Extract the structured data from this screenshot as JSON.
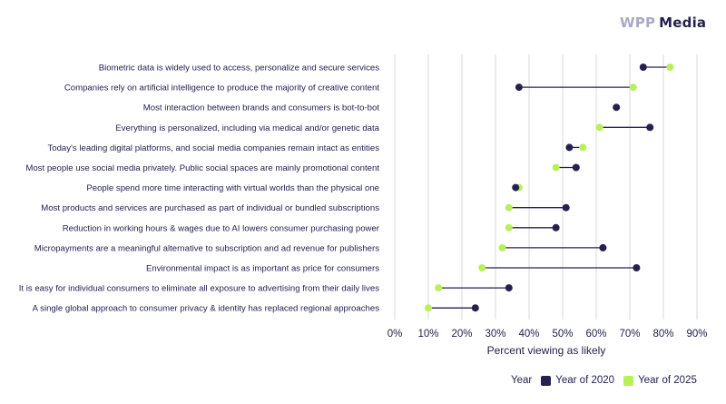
{
  "brand": {
    "wpp": "WPP",
    "media": "Media"
  },
  "colors": {
    "series_2020": "#242150",
    "series_2025": "#b8f05a",
    "grid": "#d9d9de",
    "line": "#242150"
  },
  "chart_data": {
    "type": "dumbbell",
    "categories": [
      "Biometric data is widely used to access, personalize and secure services",
      "Companies rely on artificial intelligence to produce the majority of creative content",
      "Most interaction between brands and consumers is bot-to-bot",
      "Everything is personalized, including via medical and/or genetic data",
      "Today's leading digital platforms, and social media companies remain intact as entities",
      "Most people use social media privately. Public social spaces are mainly promotional content",
      "People spend more time interacting with virtual worlds than the physical one",
      "Most products and services are purchased as part of individual or bundled subscriptions",
      "Reduction in working hours & wages due to AI lowers consumer purchasing power",
      "Micropayments are a meaningful alternative to subscription and ad revenue for publishers",
      "Environmental impact is as important as price for consumers",
      "It is easy for individual consumers to eliminate all exposure to advertising from their daily lives",
      "A single global approach to consumer privacy & identity has replaced regional approaches"
    ],
    "series": [
      {
        "name": "Year of 2020",
        "values": [
          74,
          37,
          66,
          76,
          52,
          54,
          36,
          51,
          48,
          62,
          72,
          34,
          24
        ]
      },
      {
        "name": "Year of 2025",
        "values": [
          82,
          71,
          66,
          61,
          56,
          48,
          37,
          34,
          34,
          32,
          26,
          13,
          10
        ]
      }
    ],
    "xlabel": "Percent viewing as likely",
    "xlim": [
      0,
      90
    ],
    "xticks": [
      "0%",
      "10%",
      "20%",
      "30%",
      "40%",
      "50%",
      "60%",
      "70%",
      "80%",
      "90%"
    ],
    "legend_title": "Year",
    "legend_position": "bottom-right",
    "grid": true
  }
}
